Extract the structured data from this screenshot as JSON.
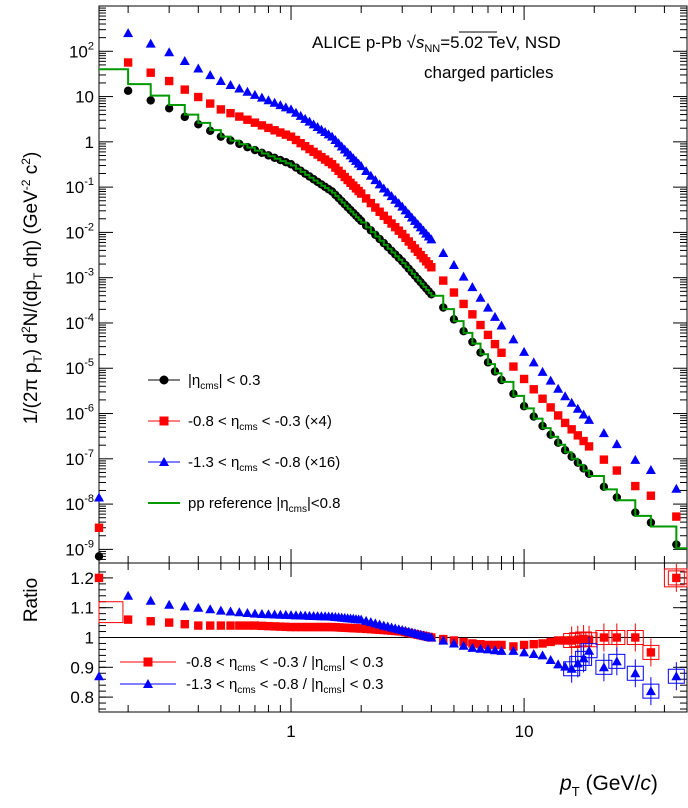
{
  "chart_data": [
    {
      "type": "scatter",
      "panel": "spectra",
      "xscale": "log",
      "yscale": "log",
      "xlim": [
        0.15,
        50
      ],
      "ylim": [
        5e-10,
        1000
      ],
      "ylabel": {
        "prefix": "1/(2π p",
        "sub1": "T",
        "mid1": ") d",
        "sup1": "2",
        "mid2": "N/(dp",
        "sub2": "T",
        "mid3": " dη) (GeV",
        "sup2": "-2",
        "mid4": " c",
        "sup3": "2",
        "suffix": ")"
      },
      "y_ticks": [
        {
          "base": "10",
          "exp": "-9"
        },
        {
          "base": "10",
          "exp": "-8"
        },
        {
          "base": "10",
          "exp": "-7"
        },
        {
          "base": "10",
          "exp": "-6"
        },
        {
          "base": "10",
          "exp": "-5"
        },
        {
          "base": "10",
          "exp": "-4"
        },
        {
          "base": "10",
          "exp": "-3"
        },
        {
          "base": "10",
          "exp": "-2"
        },
        {
          "base": "10",
          "exp": "-1"
        },
        {
          "base": "1",
          "exp": ""
        },
        {
          "base": "10",
          "exp": ""
        },
        {
          "base": "10",
          "exp": "2"
        }
      ],
      "annotation": {
        "line1_prefix": "ALICE  p-Pb ",
        "sqrt_s": "s",
        "sqrt_sub": "NN",
        "line1_suffix": "=5.02 TeV, NSD",
        "line2": "charged particles"
      },
      "legend": [
        {
          "color": "#000000",
          "marker": "circle",
          "text_a": "|η",
          "sub": "cms",
          "text_b": "| < 0.3"
        },
        {
          "color": "#ff0000",
          "marker": "square",
          "text_a": "-0.8 < η",
          "sub": "cms",
          "text_b": " < -0.3 (×4)"
        },
        {
          "color": "#0000ff",
          "marker": "triangle",
          "text_a": "-1.3 < η",
          "sub": "cms",
          "text_b": " < -0.8 (×16)"
        },
        {
          "color": "#009900",
          "marker": "line",
          "text_a": "pp reference |η",
          "sub": "cms",
          "text_b": "|<0.8"
        }
      ],
      "series": [
        {
          "color": "#000000",
          "marker": "circle",
          "x": [
            0.16,
            0.3,
            0.5,
            1.0,
            1.5,
            2,
            3,
            4,
            5,
            6,
            8,
            10,
            15,
            20,
            30,
            40,
            50
          ],
          "y": [
            22,
            5.5,
            1.3,
            0.32,
            0.08,
            0.018,
            0.0023,
            0.00043,
            0.00012,
            3.8e-05,
            5.5e-06,
            1.45e-06,
            1.55e-07,
            3.6e-08,
            6.5e-09,
            2.5e-09,
            7e-10
          ]
        },
        {
          "color": "#ff0000",
          "marker": "square",
          "x": [
            0.16,
            0.3,
            0.5,
            1.0,
            1.5,
            2,
            3,
            4,
            5,
            6,
            8,
            10,
            15,
            20,
            30,
            40,
            50
          ],
          "y": [
            95,
            22,
            5.2,
            1.3,
            0.32,
            0.072,
            0.0092,
            0.0017,
            0.00047,
            0.000155,
            2.2e-05,
            5.8e-06,
            6.2e-07,
            1.45e-07,
            2.5e-08,
            1e-08,
            3e-09
          ]
        },
        {
          "color": "#0000ff",
          "marker": "triangle",
          "x": [
            0.16,
            0.3,
            0.5,
            1.0,
            1.5,
            2,
            3,
            4,
            5,
            6,
            8,
            10,
            15,
            20,
            30,
            40,
            50
          ],
          "y": [
            430,
            95,
            22,
            5.2,
            1.3,
            0.29,
            0.037,
            0.007,
            0.0019,
            0.00062,
            8.8e-05,
            2.3e-05,
            2.4e-06,
            5.6e-07,
            9.5e-08,
            3.6e-08,
            1.4e-08
          ]
        },
        {
          "color": "#009900",
          "marker": "step",
          "x": [
            0.15,
            0.3,
            0.5,
            1.0,
            1.5,
            2,
            3,
            4,
            5,
            6,
            8,
            10,
            15,
            20,
            30,
            40,
            50
          ],
          "y": [
            40,
            6.5,
            1.3,
            0.3,
            0.075,
            0.0165,
            0.0021,
            0.0004,
            0.00011,
            3.5e-05,
            5e-06,
            1.3e-06,
            1.4e-07,
            3.2e-08,
            5.5e-09,
            2e-09,
            6e-10
          ]
        }
      ]
    },
    {
      "type": "scatter",
      "panel": "ratio",
      "xscale": "log",
      "xlim": [
        0.15,
        50
      ],
      "ylim": [
        0.75,
        1.25
      ],
      "ylabel": "Ratio",
      "xlabel": {
        "p": "p",
        "sub": "T",
        "unit": " (GeV/",
        "c": "c",
        "close": ")"
      },
      "x_ticks": [
        "1",
        "10"
      ],
      "y_ticks": [
        "0.8",
        "0.9",
        "1",
        "1.1",
        "1.2"
      ],
      "legend": [
        {
          "color": "#ff0000",
          "marker": "square",
          "a": "-0.8 < η",
          "s1": "cms",
          "b": " < -0.3 / |η",
          "s2": "cms",
          "c": "| < 0.3"
        },
        {
          "color": "#0000ff",
          "marker": "triangle",
          "a": "-1.3 < η",
          "s1": "cms",
          "b": " < -0.8 / |η",
          "s2": "cms",
          "c": "| < 0.3"
        }
      ],
      "series": [
        {
          "color": "#ff0000",
          "marker": "square",
          "x": [
            0.16,
            0.2,
            0.3,
            0.4,
            0.5,
            0.7,
            1.0,
            1.5,
            2.0,
            2.5,
            3.0,
            4.0,
            5.0,
            6.0,
            7.0,
            8.0,
            9.0,
            10,
            12,
            14,
            16,
            18,
            20,
            22,
            25,
            30,
            35,
            45
          ],
          "y": [
            1.08,
            1.06,
            1.05,
            1.04,
            1.04,
            1.04,
            1.035,
            1.035,
            1.03,
            1.025,
            1.02,
            1.0,
            0.99,
            0.98,
            0.975,
            0.975,
            0.97,
            0.975,
            0.98,
            0.99,
            0.99,
            0.995,
            0.99,
            1.0,
            1.0,
            1.0,
            0.95,
            1.2
          ]
        },
        {
          "color": "#0000ff",
          "marker": "triangle",
          "x": [
            0.16,
            0.2,
            0.3,
            0.4,
            0.5,
            0.7,
            1.0,
            1.5,
            2.0,
            2.5,
            3.0,
            4.0,
            5.0,
            6.0,
            7.0,
            8.0,
            9.0,
            10,
            12,
            14,
            16,
            18,
            20,
            22,
            25,
            30,
            35,
            45
          ],
          "y": [
            1.16,
            1.14,
            1.11,
            1.1,
            1.09,
            1.08,
            1.075,
            1.07,
            1.06,
            1.04,
            1.025,
            1.0,
            0.98,
            0.965,
            0.96,
            0.955,
            0.955,
            0.95,
            0.94,
            0.91,
            0.895,
            0.93,
            0.98,
            0.9,
            0.92,
            0.88,
            0.82,
            0.87
          ]
        }
      ]
    }
  ]
}
